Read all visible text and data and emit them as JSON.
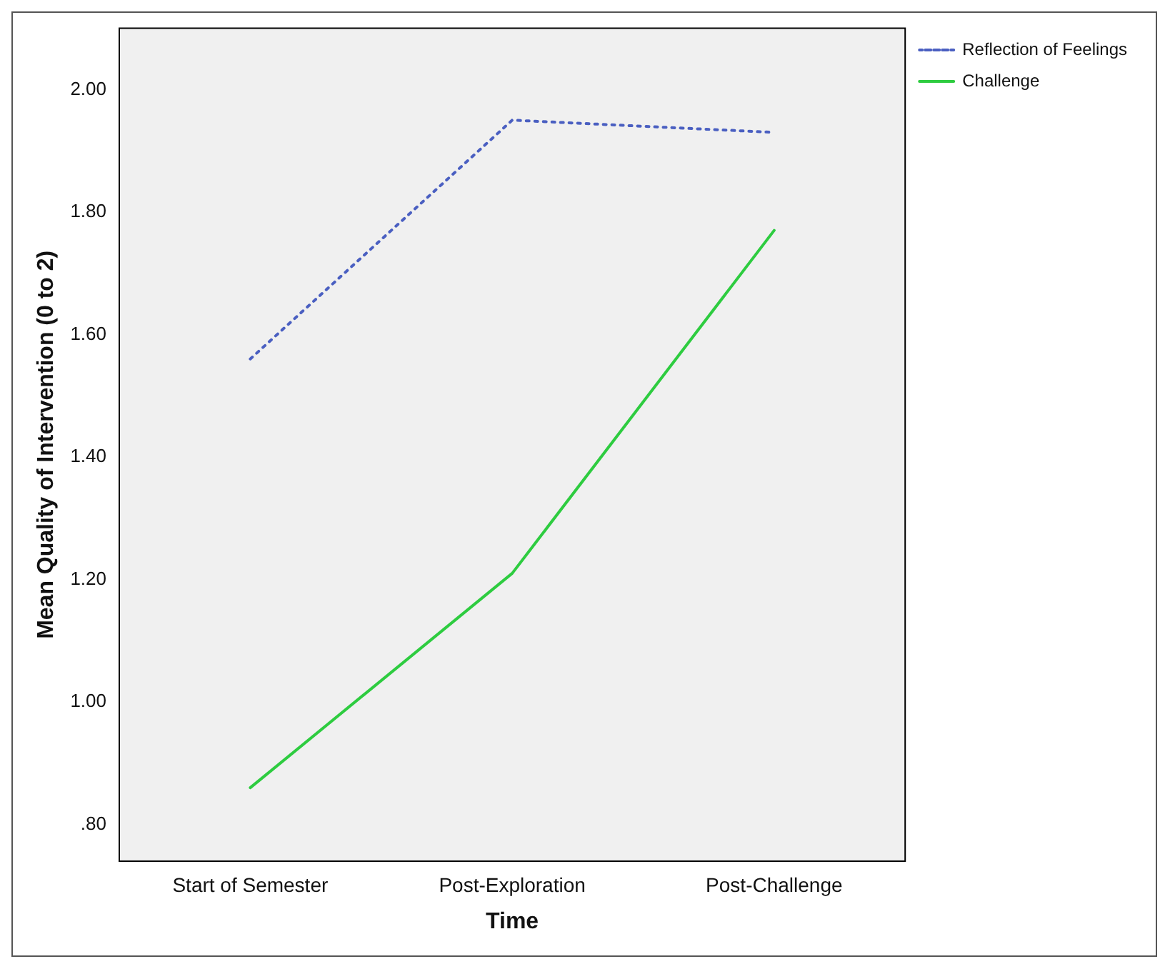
{
  "chart_data": {
    "type": "line",
    "xlabel": "Time",
    "ylabel": "Mean Quality of Intervention (0 to 2)",
    "categories": [
      "Start of Semester",
      "Post-Exploration",
      "Post-Challenge"
    ],
    "series": [
      {
        "name": "Reflection of Feelings",
        "color": "#4a5fc1",
        "values": [
          1.56,
          1.95,
          1.93
        ],
        "line_style": "dotted"
      },
      {
        "name": "Challenge",
        "color": "#2ecc40",
        "values": [
          0.86,
          1.21,
          1.77
        ],
        "line_style": "solid"
      }
    ],
    "ylim": [
      0.74,
      2.1
    ],
    "yticks": [
      {
        "value": 0.8,
        "label": ".80"
      },
      {
        "value": 1,
        "label": "1.00"
      },
      {
        "value": 1.2,
        "label": "1.20"
      },
      {
        "value": 1.4,
        "label": "1.40"
      },
      {
        "value": 1.6,
        "label": "1.60"
      },
      {
        "value": 1.8,
        "label": "1.80"
      },
      {
        "value": 2,
        "label": "2.00"
      }
    ],
    "grid": false,
    "legend": "top right",
    "marker": "none"
  }
}
